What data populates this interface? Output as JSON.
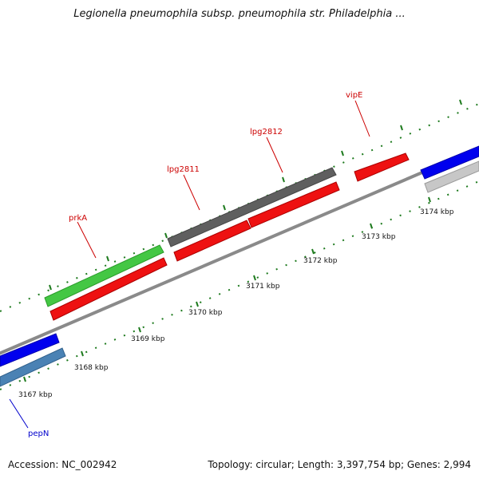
{
  "title": "Legionella pneumophila subsp. pneumophila str. Philadelphia ...",
  "footer": {
    "accession": "Accession: NC_002942",
    "summary": "Topology: circular; Length: 3,397,754 bp; Genes: 2,994"
  },
  "colors": {
    "backbone": "#8a8a8a",
    "tick": "#1d7a1d",
    "label_red": "#cc0000",
    "label_blue": "#0000cc"
  },
  "scale_labels": [
    "3167 kbp",
    "3168 kbp",
    "3169 kbp",
    "3170 kbp",
    "3171 kbp",
    "3172 kbp",
    "3173 kbp",
    "3174 kbp"
  ],
  "genes": [
    {
      "name": "prkA",
      "color": "red"
    },
    {
      "name": "lpg2811",
      "color": "red"
    },
    {
      "name": "lpg2812",
      "color": "red"
    },
    {
      "name": "vipE",
      "color": "red"
    },
    {
      "name": "pepN",
      "color": "blue"
    }
  ]
}
